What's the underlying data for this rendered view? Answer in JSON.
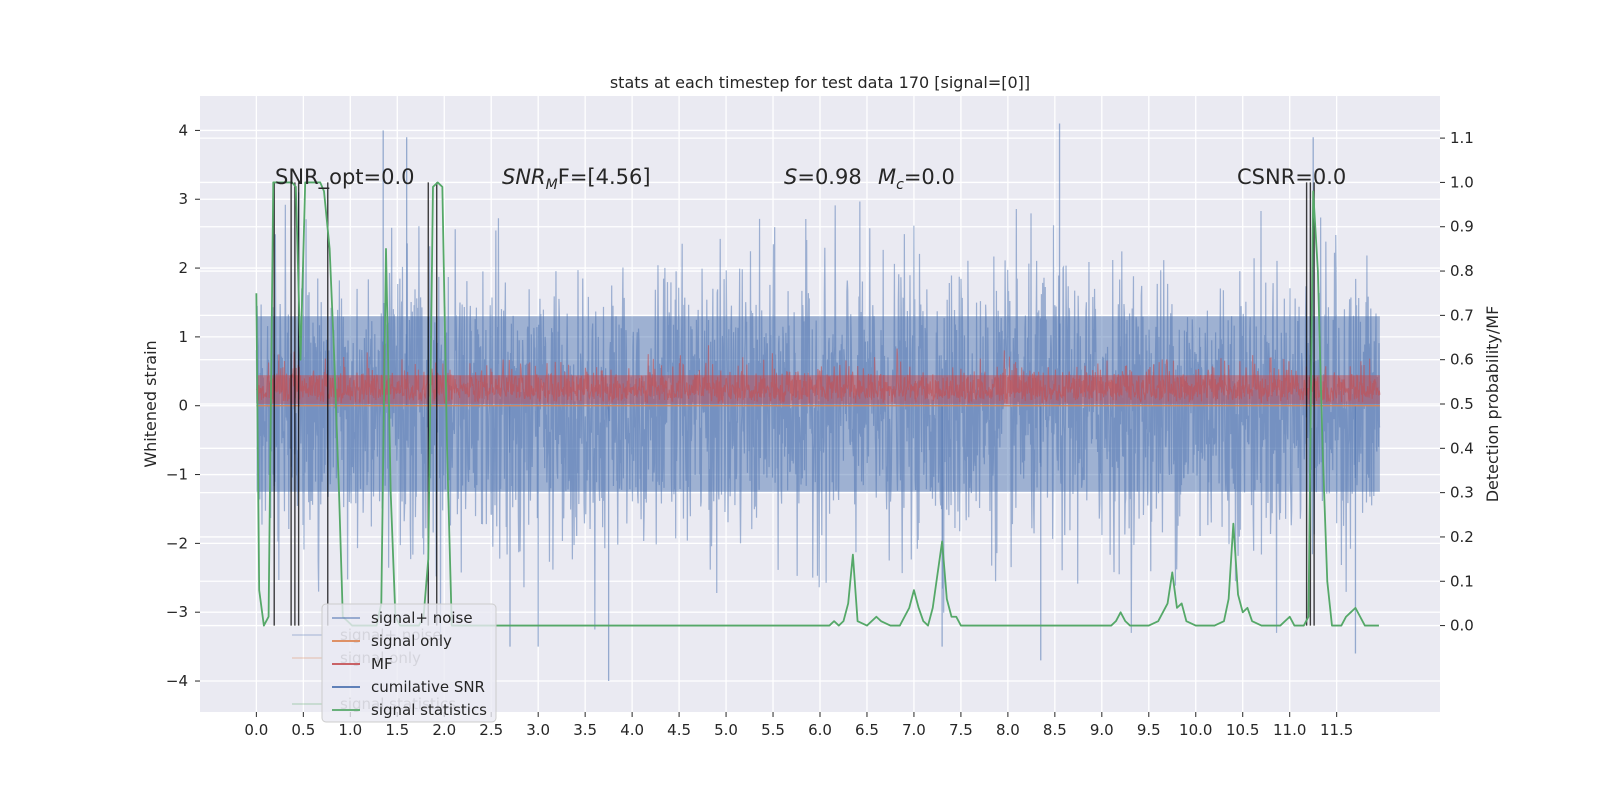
{
  "chart_data": {
    "type": "line",
    "title": "stats at each timestep for test data 170 [signal=[0]]",
    "xlabel": "",
    "ylabel": "Whitened strain",
    "y2label": "Detection probability/MF",
    "xlim": [
      -0.6,
      12.6
    ],
    "ylim": [
      -4.45,
      4.5
    ],
    "y2lim": [
      -0.195,
      1.195
    ],
    "grid": true,
    "background": "#eaeaf2",
    "x_ticks": [
      0.0,
      0.5,
      1.0,
      1.5,
      2.0,
      2.5,
      3.0,
      3.5,
      4.0,
      4.5,
      5.0,
      5.5,
      6.0,
      6.5,
      7.0,
      7.5,
      8.0,
      8.5,
      9.0,
      9.5,
      10.0,
      10.5,
      11.0,
      11.5
    ],
    "x_tick_labels": [
      "0.0",
      "0.5",
      "1.0",
      "1.5",
      "2.0",
      "2.5",
      "3.0",
      "3.5",
      "4.0",
      "4.5",
      "5.0",
      "5.5",
      "6.0",
      "6.5",
      "7.0",
      "7.5",
      "8.0",
      "8.5",
      "9.0",
      "9.5",
      "10.0",
      "10.5",
      "11.0",
      "11.5"
    ],
    "y_ticks": [
      4,
      3,
      2,
      1,
      0,
      -1,
      -2,
      -3,
      -4
    ],
    "y_tick_labels": [
      "4",
      "3",
      "2",
      "1",
      "0",
      "−1",
      "−2",
      "−3",
      "−4"
    ],
    "y2_ticks": [
      1.1,
      1.0,
      0.9,
      0.8,
      0.7,
      0.6,
      0.5,
      0.4,
      0.3,
      0.2,
      0.1,
      0.0
    ],
    "y2_tick_labels": [
      "1.1",
      "1.0",
      "0.9",
      "0.8",
      "0.7",
      "0.6",
      "0.5",
      "0.4",
      "0.3",
      "0.2",
      "0.1",
      "0.0"
    ],
    "annotations": [
      {
        "text": "SNR_opt=0.0"
      },
      {
        "text": "SNR_MF=[4.56]",
        "main": "SNR",
        "sub": "M",
        "rest": "F=[4.56]"
      },
      {
        "text": "S=0.98",
        "main": "S",
        "rest": "=0.98"
      },
      {
        "text": "M_c=0.0",
        "main": "M",
        "sub": "c",
        "rest": "=0.0"
      },
      {
        "text": "CSNR=0.0"
      }
    ],
    "series": [
      {
        "name": "signal+ noise",
        "color": "#4c72b0",
        "axis": "left",
        "style": "dense noise band",
        "x_range": [
          0.0,
          11.96
        ],
        "band_upper": 1.3,
        "band_lower": -1.25,
        "typical_peaks": [
          1.8,
          2.8
        ],
        "typical_troughs": [
          -1.8,
          -3.0
        ],
        "extremes": [
          {
            "x": 0.45,
            "y": 3.1
          },
          {
            "x": 1.35,
            "y": 4.0
          },
          {
            "x": 1.6,
            "y": 3.9
          },
          {
            "x": 3.75,
            "y": -4.0
          },
          {
            "x": 8.55,
            "y": 4.1
          },
          {
            "x": 11.25,
            "y": 3.9
          },
          {
            "x": 8.35,
            "y": -3.7
          },
          {
            "x": 11.7,
            "y": -3.6
          },
          {
            "x": 7.3,
            "y": -3.5
          },
          {
            "x": 2.7,
            "y": -3.5
          },
          {
            "x": 3.0,
            "y": -3.5
          }
        ]
      },
      {
        "name": "signal only",
        "color": "#dd8452",
        "axis": "left",
        "style": "line",
        "x": [
          0.0,
          11.96
        ],
        "y": [
          0.0,
          0.0
        ]
      },
      {
        "name": "MF",
        "color": "#c44e52",
        "axis": "right",
        "style": "dense noise band",
        "x_range": [
          0.0,
          11.96
        ],
        "baseline": 0.5,
        "upper": 0.6,
        "spike_max": 0.66
      },
      {
        "name": "cumilative SNR",
        "color": "#4c72b0",
        "axis": "left",
        "style": "line",
        "x": [],
        "y": []
      },
      {
        "name": "signal statistics",
        "color": "#55a868",
        "axis": "right",
        "style": "line",
        "x": [
          0.0,
          0.03,
          0.08,
          0.13,
          0.18,
          0.22,
          0.28,
          0.33,
          0.38,
          0.42,
          0.47,
          0.52,
          0.58,
          0.63,
          0.68,
          0.72,
          0.78,
          0.83,
          0.88,
          0.92,
          0.97,
          1.02,
          1.08,
          1.13,
          1.18,
          1.22,
          1.28,
          1.33,
          1.38,
          1.43,
          1.48,
          1.53,
          1.58,
          1.63,
          1.68,
          1.73,
          1.78,
          1.83,
          1.88,
          1.93,
          1.98,
          2.03,
          2.08,
          2.13,
          2.2,
          2.5,
          3.0,
          3.5,
          4.0,
          4.5,
          5.0,
          5.5,
          5.7,
          5.8,
          6.0,
          6.1,
          6.15,
          6.2,
          6.25,
          6.3,
          6.35,
          6.4,
          6.5,
          6.6,
          6.65,
          6.75,
          6.85,
          6.95,
          7.0,
          7.05,
          7.1,
          7.15,
          7.2,
          7.3,
          7.35,
          7.4,
          7.45,
          7.5,
          7.6,
          7.8,
          8.0,
          8.5,
          9.0,
          9.1,
          9.15,
          9.2,
          9.25,
          9.3,
          9.5,
          9.6,
          9.7,
          9.75,
          9.8,
          9.85,
          9.9,
          10.0,
          10.2,
          10.3,
          10.35,
          10.4,
          10.45,
          10.5,
          10.55,
          10.6,
          10.7,
          10.9,
          11.0,
          11.05,
          11.1,
          11.15,
          11.2,
          11.25,
          11.3,
          11.35,
          11.4,
          11.45,
          11.5,
          11.55,
          11.6,
          11.65,
          11.7,
          11.8,
          11.9,
          11.95
        ],
        "y": [
          0.75,
          0.08,
          0.0,
          0.02,
          1.0,
          1.0,
          1.0,
          1.0,
          1.0,
          0.99,
          0.6,
          1.0,
          1.0,
          1.0,
          1.0,
          0.98,
          0.85,
          0.6,
          0.3,
          0.02,
          0.01,
          0.0,
          0.0,
          0.0,
          0.0,
          0.0,
          0.0,
          0.05,
          0.85,
          0.3,
          0.02,
          0.0,
          0.0,
          0.0,
          0.0,
          0.0,
          0.02,
          0.15,
          0.99,
          1.0,
          0.99,
          0.4,
          0.0,
          0.0,
          0.0,
          0.0,
          0.0,
          0.0,
          0.0,
          0.0,
          0.0,
          0.0,
          0.0,
          0.0,
          0.0,
          0.0,
          0.01,
          0.0,
          0.01,
          0.05,
          0.16,
          0.01,
          0.0,
          0.02,
          0.01,
          0.0,
          0.0,
          0.04,
          0.08,
          0.04,
          0.01,
          0.0,
          0.04,
          0.19,
          0.06,
          0.02,
          0.02,
          0.0,
          0.0,
          0.0,
          0.0,
          0.0,
          0.0,
          0.0,
          0.01,
          0.03,
          0.01,
          0.0,
          0.0,
          0.01,
          0.05,
          0.12,
          0.04,
          0.05,
          0.01,
          0.0,
          0.0,
          0.01,
          0.06,
          0.23,
          0.07,
          0.03,
          0.04,
          0.01,
          0.0,
          0.0,
          0.02,
          0.0,
          0.0,
          0.0,
          0.02,
          0.98,
          0.8,
          0.4,
          0.1,
          0.0,
          0.0,
          0.0,
          0.02,
          0.03,
          0.04,
          0.0,
          0.0,
          0.0
        ]
      }
    ],
    "vertical_lines": {
      "color": "#000000",
      "x": [
        0.19,
        0.37,
        0.41,
        0.45,
        0.76,
        1.83,
        1.92,
        11.18,
        11.22,
        11.26
      ]
    },
    "legend": {
      "placement": "lower-left",
      "entries": [
        {
          "label": "signal+ noise",
          "color": "#4c72b0"
        },
        {
          "label": "signal only",
          "color": "#dd8452"
        },
        {
          "label": "MF",
          "color": "#c44e52"
        },
        {
          "label": "cumilative SNR",
          "color": "#4c72b0"
        },
        {
          "label": "signal statistics",
          "color": "#55a868"
        }
      ],
      "ghost_entries": [
        {
          "label": "signal+ noise",
          "color": "#4c72b0"
        },
        {
          "label": "signal only",
          "color": "#dd8452"
        },
        {
          "label": "signal statistics",
          "color": "#55a868"
        }
      ]
    }
  }
}
